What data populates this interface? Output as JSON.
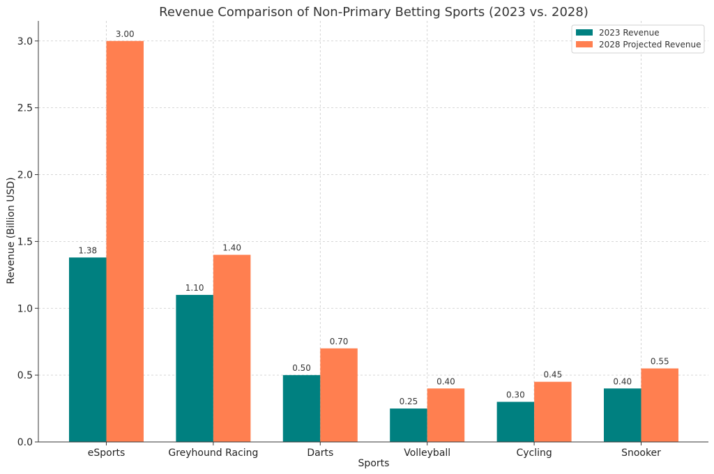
{
  "chart_data": {
    "type": "bar",
    "title": "Revenue Comparison of Non-Primary Betting Sports (2023 vs. 2028)",
    "xlabel": "Sports",
    "ylabel": "Revenue (Billion USD)",
    "categories": [
      "eSports",
      "Greyhound Racing",
      "Darts",
      "Volleyball",
      "Cycling",
      "Snooker"
    ],
    "series": [
      {
        "name": "2023 Revenue",
        "color": "#008080",
        "values": [
          1.38,
          1.1,
          0.5,
          0.25,
          0.3,
          0.4
        ],
        "value_labels": [
          "1.38",
          "1.10",
          "0.50",
          "0.25",
          "0.30",
          "0.40"
        ]
      },
      {
        "name": "2028 Projected Revenue",
        "color": "#FF7F50",
        "values": [
          3.0,
          1.4,
          0.7,
          0.4,
          0.45,
          0.55
        ],
        "value_labels": [
          "3.00",
          "1.40",
          "0.70",
          "0.40",
          "0.45",
          "0.55"
        ]
      }
    ],
    "ylim": [
      0,
      3.15
    ],
    "yticks": [
      0,
      0.5,
      1.0,
      1.5,
      2.0,
      2.5,
      3.0
    ],
    "ytick_labels": [
      "0.0",
      "0.5",
      "1.0",
      "1.5",
      "2.0",
      "2.5",
      "3.0"
    ],
    "grid": true,
    "legend_position": "top-right"
  }
}
